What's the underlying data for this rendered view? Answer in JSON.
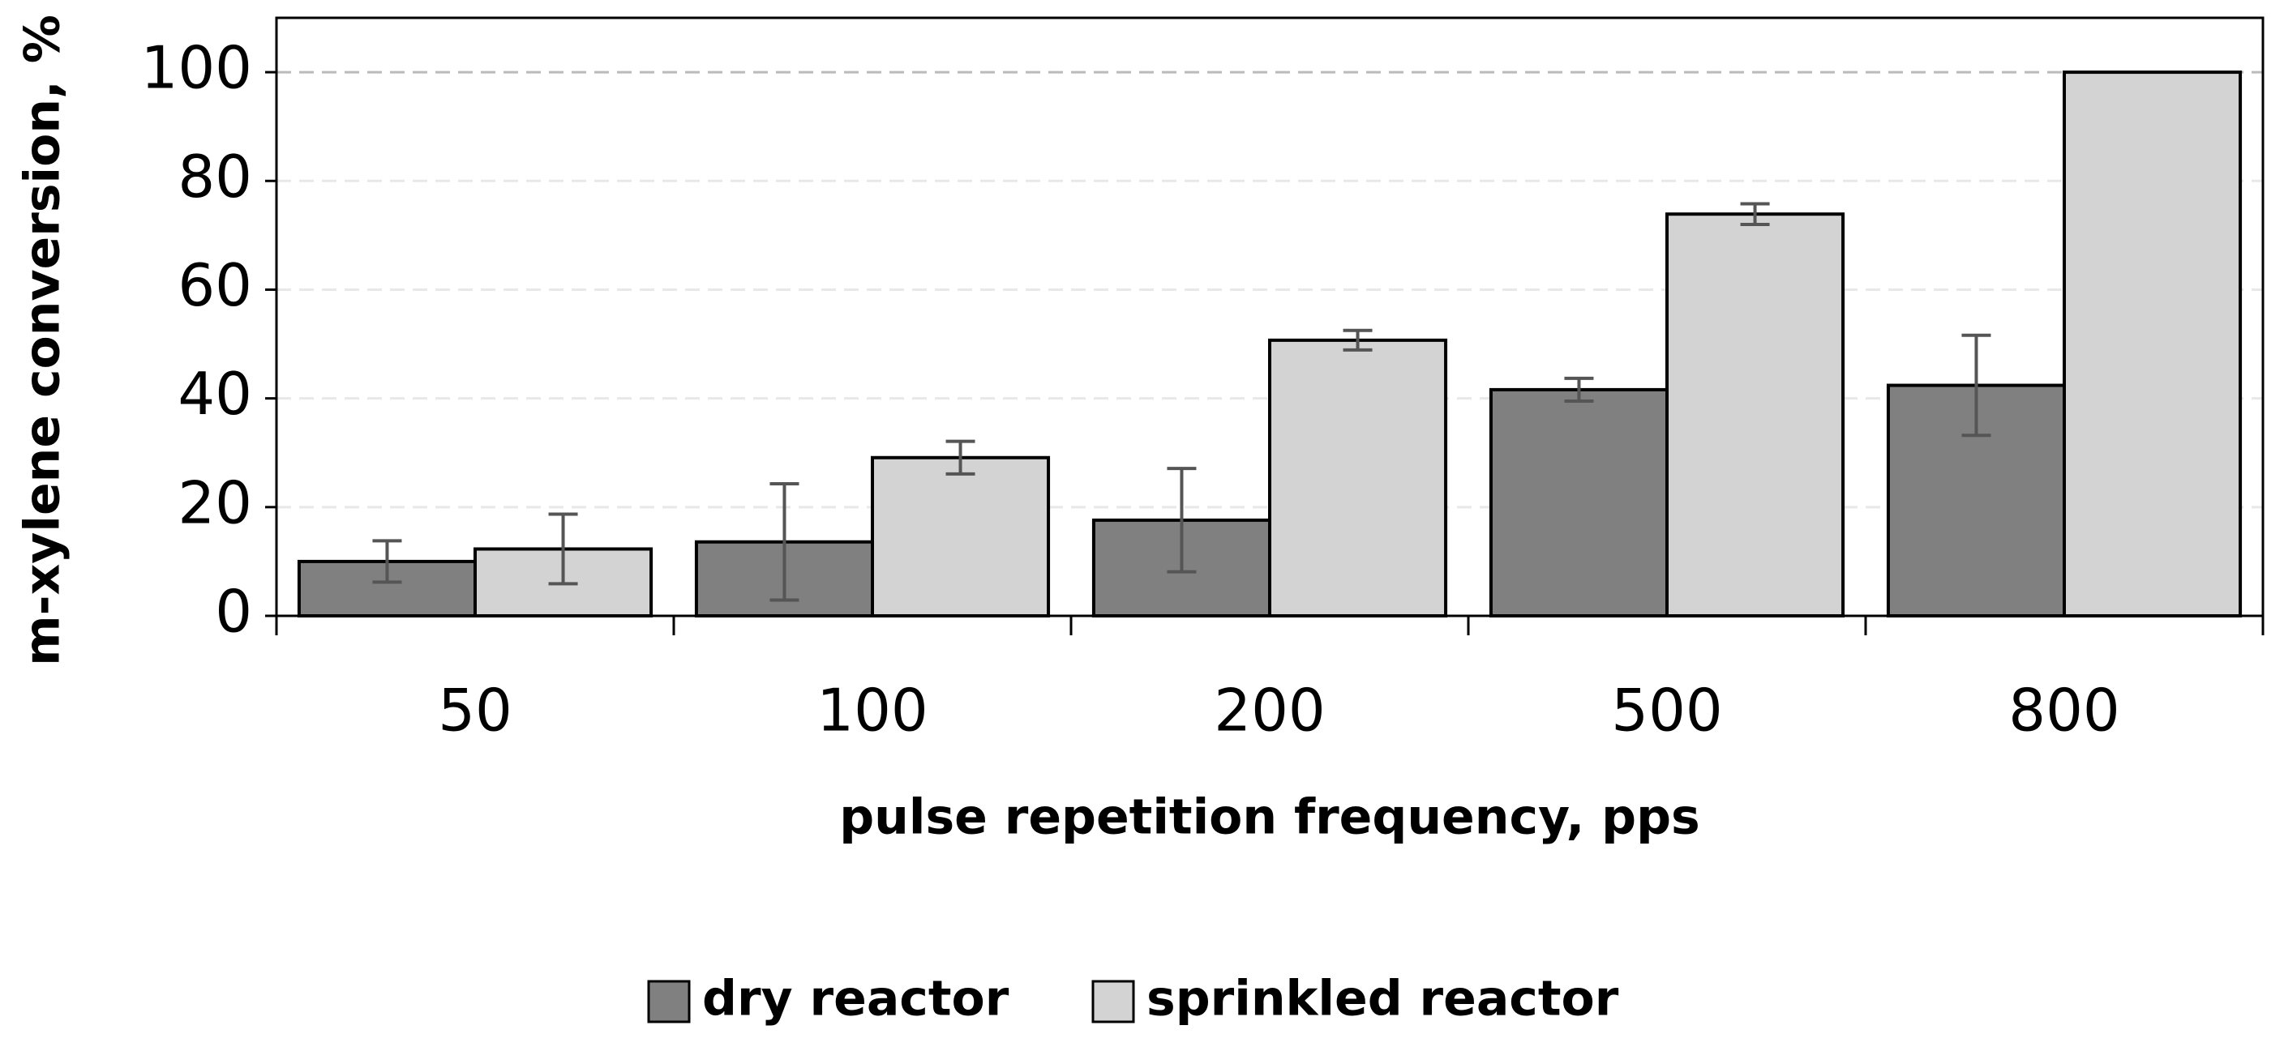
{
  "chart_data": {
    "type": "bar",
    "categories": [
      "50",
      "100",
      "200",
      "500",
      "800"
    ],
    "series": [
      {
        "name": "dry reactor",
        "color": "#808080",
        "values": [
          10,
          13.6,
          17.6,
          41.6,
          42.4
        ],
        "errors": [
          3.8,
          10.7,
          9.5,
          2.1,
          9.2
        ]
      },
      {
        "name": "sprinkled reactor",
        "color": "#d3d3d3",
        "values": [
          12.3,
          29.1,
          50.7,
          73.9,
          100
        ],
        "errors": [
          6.4,
          3,
          1.8,
          1.9,
          0
        ]
      }
    ],
    "x_label": "pulse repetition frequency, pps",
    "y_label": "m-xylene conversion, %",
    "ylim": [
      0,
      110
    ],
    "yticks": [
      0,
      20,
      40,
      60,
      80,
      100
    ],
    "grid": true,
    "legend": "bottom"
  }
}
